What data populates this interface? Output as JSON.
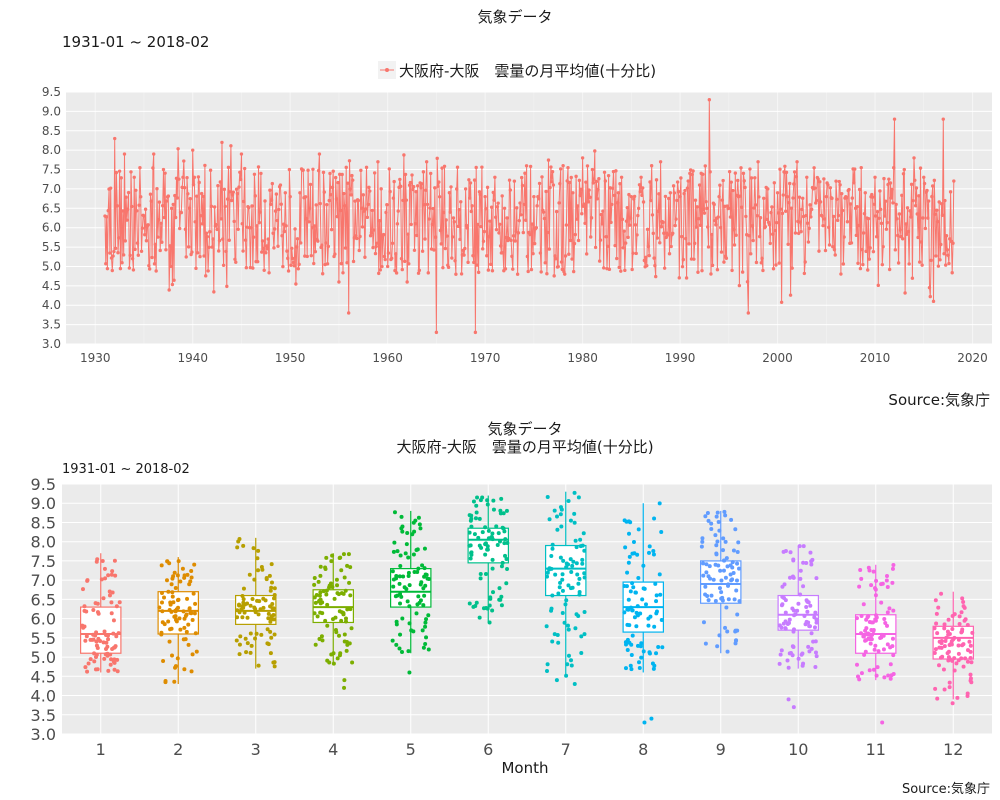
{
  "top": {
    "title": "気象データ",
    "period": "1931-01 ~ 2018-02",
    "legend": "大阪府-大阪　雲量の月平均値(十分比)",
    "source": "Source:気象庁"
  },
  "bottom": {
    "title": "気象データ",
    "subtitle": "大阪府-大阪　雲量の月平均値(十分比)",
    "period": "1931-01 ~ 2018-02",
    "xlabel": "Month",
    "source": "Source:気象庁"
  },
  "colors": {
    "panel_bg": "#ebebeb",
    "grid": "#ffffff",
    "line_series": "#f8766d",
    "months": [
      "#f8766d",
      "#de8c00",
      "#b79f00",
      "#7cae00",
      "#00ba38",
      "#00c08b",
      "#00bfc4",
      "#00b4f0",
      "#619cff",
      "#c77cff",
      "#f564e3",
      "#ff64b0"
    ]
  },
  "chart_data": [
    {
      "type": "line",
      "series": [
        {
          "name": "大阪府-大阪　雲量の月平均値(十分比)",
          "x": [
            "1931-01",
            "1932-01",
            "1933-01",
            "1934-01",
            "1935-01",
            "1936-01",
            "1937-01",
            "1938-01",
            "1939-01",
            "1940-01",
            "1941-01",
            "1942-01",
            "1943-01",
            "1944-01",
            "1945-01",
            "1946-01",
            "1947-01",
            "1948-01",
            "1949-01",
            "1950-01",
            "1951-01",
            "1952-01",
            "1953-01",
            "1954-01",
            "1955-01",
            "1956-01",
            "1957-01",
            "1958-01",
            "1959-01",
            "1960-01",
            "1961-01",
            "1962-01",
            "1963-01",
            "1964-01",
            "1965-01",
            "1966-01",
            "1967-01",
            "1968-01",
            "1969-01",
            "1970-01",
            "1971-01",
            "1972-01",
            "1973-01",
            "1974-01",
            "1975-01",
            "1976-01",
            "1977-01",
            "1978-01",
            "1979-01",
            "1980-01",
            "1981-01",
            "1982-01",
            "1983-01",
            "1984-01",
            "1985-01",
            "1986-01",
            "1987-01",
            "1988-01",
            "1989-01",
            "1990-01",
            "1991-01",
            "1992-01",
            "1993-01",
            "1994-01",
            "1995-01",
            "1996-01",
            "1997-01",
            "1998-01",
            "1999-01",
            "2000-01",
            "2001-01",
            "2002-01",
            "2003-01",
            "2004-01",
            "2005-01",
            "2006-01",
            "2007-01",
            "2008-01",
            "2009-01",
            "2010-01",
            "2011-01",
            "2012-01",
            "2013-01",
            "2014-01",
            "2015-01",
            "2016-01",
            "2017-01",
            "2018-01"
          ],
          "values": [
            6.3,
            8.3,
            7.9,
            7.3,
            6.3,
            7.9,
            7.5,
            6.6,
            7.3,
            8.0,
            6.1,
            5.5,
            8.2,
            6.7,
            7.9,
            6.0,
            7.4,
            6.6,
            7.1,
            6.8,
            6.9,
            6.5,
            7.9,
            6.7,
            4.6,
            3.8,
            6.7,
            6.6,
            7.7,
            5.0,
            6.1,
            4.6,
            5.8,
            7.7,
            3.3,
            6.2,
            4.8,
            7.0,
            3.3,
            6.8,
            7.3,
            6.5,
            7.2,
            6.6,
            6.8,
            6.4,
            7.1,
            7.6,
            6.9,
            7.8,
            7.5,
            6.1,
            6.6,
            7.3,
            6.8,
            7.3,
            6.7,
            7.7,
            6.9,
            6.8,
            7.4,
            7.1,
            9.3,
            6.8,
            6.5,
            6.8,
            3.8,
            7.7,
            7.0,
            6.9,
            6.8,
            7.7,
            7.3,
            6.7,
            6.8,
            7.2,
            6.8,
            6.5,
            6.9,
            7.3,
            6.3,
            8.8,
            7.5,
            7.8,
            7.3,
            4.1,
            8.8,
            5.6
          ]
        }
      ],
      "xlim": [
        1927,
        2022
      ],
      "ylim": [
        3.0,
        9.5
      ],
      "x_ticks": [
        "1930",
        "1940",
        "1950",
        "1960",
        "1970",
        "1980",
        "1990",
        "2000",
        "2010",
        "2020"
      ],
      "y_ticks": [
        "3.0",
        "3.5",
        "4.0",
        "4.5",
        "5.0",
        "5.5",
        "6.0",
        "6.5",
        "7.0",
        "7.5",
        "8.0",
        "8.5",
        "9.0",
        "9.5"
      ],
      "grid": true,
      "legend_position": "top"
    },
    {
      "type": "box",
      "categories": [
        "1",
        "2",
        "3",
        "4",
        "5",
        "6",
        "7",
        "8",
        "9",
        "10",
        "11",
        "12"
      ],
      "q1": [
        5.1,
        5.6,
        5.85,
        5.9,
        6.3,
        7.45,
        6.6,
        5.65,
        6.4,
        5.7,
        5.1,
        4.95
      ],
      "median": [
        5.6,
        6.2,
        6.2,
        6.3,
        6.7,
        8.05,
        7.3,
        6.3,
        6.9,
        6.1,
        5.6,
        5.5
      ],
      "q3": [
        6.3,
        6.7,
        6.6,
        6.75,
        7.3,
        8.35,
        7.9,
        6.95,
        7.5,
        6.6,
        6.1,
        5.8
      ],
      "whisker_low": [
        4.6,
        4.3,
        4.7,
        4.8,
        5.1,
        5.9,
        4.5,
        4.6,
        5.1,
        4.7,
        4.4,
        3.9
      ],
      "whisker_high": [
        7.7,
        7.6,
        8.1,
        7.7,
        8.8,
        9.2,
        9.3,
        9.0,
        8.8,
        7.9,
        7.4,
        6.7
      ],
      "outliers": [
        [],
        [],
        [],
        [
          4.4,
          4.2
        ],
        [
          4.6
        ],
        [],
        [
          4.3,
          4.4
        ],
        [
          3.3,
          3.4
        ],
        [],
        [
          3.9,
          3.7
        ],
        [
          3.3
        ],
        [
          3.8
        ]
      ],
      "ylim": [
        3.0,
        9.5
      ],
      "y_ticks": [
        "3.0",
        "3.5",
        "4.0",
        "4.5",
        "5.0",
        "5.5",
        "6.0",
        "6.5",
        "7.0",
        "7.5",
        "8.0",
        "8.5",
        "9.0",
        "9.5"
      ],
      "grid": true
    }
  ]
}
